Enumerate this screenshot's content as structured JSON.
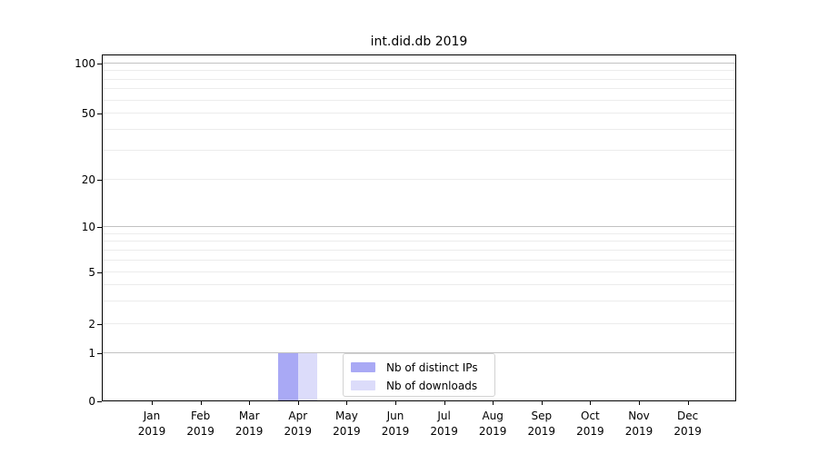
{
  "figure": {
    "background": "#ffffff"
  },
  "chart_data": {
    "type": "bar",
    "title": "int.did.db 2019",
    "categories": [
      "Jan 2019",
      "Feb 2019",
      "Mar 2019",
      "Apr 2019",
      "May 2019",
      "Jun 2019",
      "Jul 2019",
      "Aug 2019",
      "Sep 2019",
      "Oct 2019",
      "Nov 2019",
      "Dec 2019"
    ],
    "series": [
      {
        "name": "Nb of distinct IPs",
        "color": "#a9a9f5",
        "values": [
          0,
          0,
          0,
          1,
          0,
          0,
          0,
          0,
          0,
          0,
          0,
          0
        ]
      },
      {
        "name": "Nb of downloads",
        "color": "#dcdcfa",
        "values": [
          0,
          0,
          0,
          1,
          0,
          0,
          0,
          0,
          0,
          0,
          0,
          0
        ]
      }
    ],
    "xlabel": "",
    "ylabel": "",
    "yaxis": {
      "scale": "log-like",
      "ticks": [
        0,
        1,
        2,
        5,
        10,
        20,
        50,
        100
      ],
      "minor_gridlines": [
        3,
        4,
        6,
        7,
        8,
        9,
        30,
        40,
        60,
        70,
        80,
        90
      ],
      "range": [
        0,
        110
      ]
    },
    "legend": {
      "position": "lower center",
      "entries": [
        "Nb of distinct IPs",
        "Nb of downloads"
      ]
    },
    "grid": true,
    "colors": {
      "major_grid": "#c2c2c2",
      "minor_grid": "#ececec",
      "spine": "#000000"
    }
  }
}
